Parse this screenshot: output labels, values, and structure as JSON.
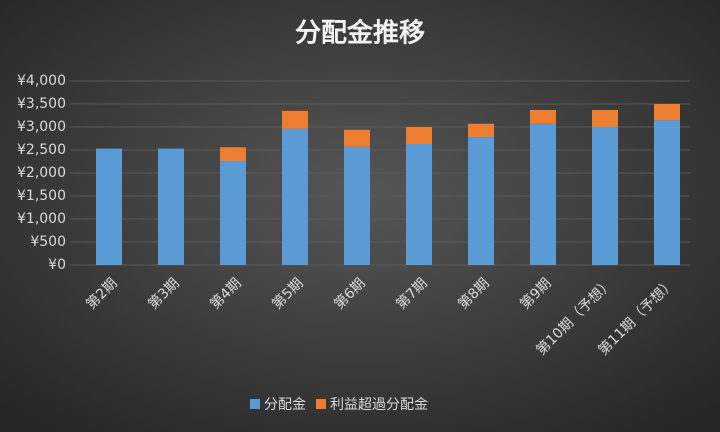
{
  "chart_data": {
    "type": "stacked_bar",
    "title": "分配金推移",
    "categories": [
      "第2期",
      "第3期",
      "第4期",
      "第5期",
      "第6期",
      "第7期",
      "第8期",
      "第9期",
      "第10期（予想）",
      "第11期（予想）"
    ],
    "series": [
      {
        "name": "分配金",
        "color": "#5b9bd5",
        "values": [
          2530,
          2530,
          2260,
          2960,
          2570,
          2630,
          2780,
          3070,
          3000,
          3150
        ]
      },
      {
        "name": "利益超過分配金",
        "color": "#ed7d31",
        "values": [
          0,
          0,
          300,
          390,
          370,
          370,
          290,
          300,
          370,
          350
        ]
      }
    ],
    "ylim": [
      0,
      4000
    ],
    "yticks": [
      {
        "value": 0,
        "label": "¥0"
      },
      {
        "value": 500,
        "label": "¥500"
      },
      {
        "value": 1000,
        "label": "¥1,000"
      },
      {
        "value": 1500,
        "label": "¥1,500"
      },
      {
        "value": 2000,
        "label": "¥2,000"
      },
      {
        "value": 2500,
        "label": "¥2,500"
      },
      {
        "value": 3000,
        "label": "¥3,000"
      },
      {
        "value": 3500,
        "label": "¥3,500"
      },
      {
        "value": 4000,
        "label": "¥4,000"
      }
    ],
    "grid": true,
    "legend": "bottom"
  }
}
